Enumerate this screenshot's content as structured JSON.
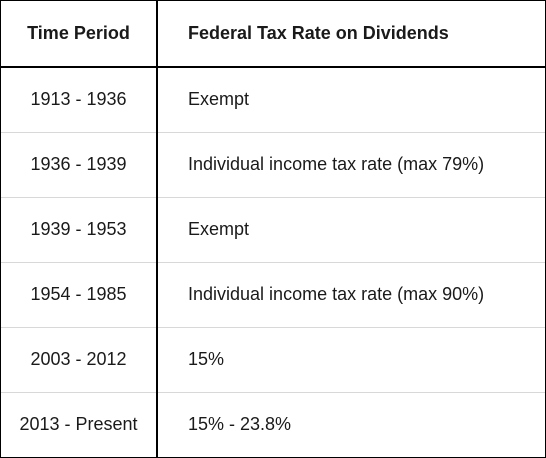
{
  "table": {
    "headers": [
      "Time Period",
      "Federal Tax Rate on Dividends"
    ],
    "rows": [
      [
        "1913 - 1936",
        "Exempt"
      ],
      [
        "1936 - 1939",
        "Individual income tax rate (max 79%)"
      ],
      [
        "1939 - 1953",
        "Exempt"
      ],
      [
        "1954 - 1985",
        "Individual income tax rate (max 90%)"
      ],
      [
        "2003 - 2012",
        "15%"
      ],
      [
        "2013 - Present",
        "15% - 23.8%"
      ]
    ]
  }
}
